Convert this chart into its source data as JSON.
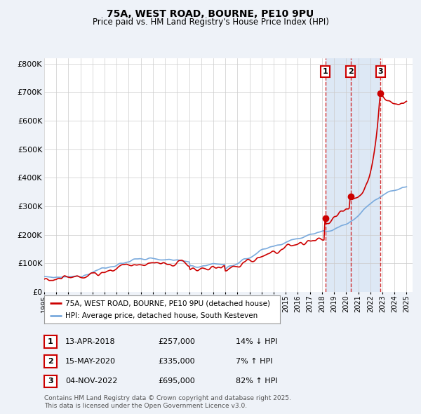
{
  "title1": "75A, WEST ROAD, BOURNE, PE10 9PU",
  "title2": "Price paid vs. HM Land Registry's House Price Index (HPI)",
  "ylabel_ticks": [
    "£0",
    "£100K",
    "£200K",
    "£300K",
    "£400K",
    "£500K",
    "£600K",
    "£700K",
    "£800K"
  ],
  "ytick_values": [
    0,
    100000,
    200000,
    300000,
    400000,
    500000,
    600000,
    700000,
    800000
  ],
  "ylim": [
    0,
    820000
  ],
  "xlim_start": 1995.0,
  "xlim_end": 2025.5,
  "background_color": "#eef2f8",
  "plot_bg_color": "#ffffff",
  "grid_color": "#cccccc",
  "red_color": "#cc0000",
  "blue_color": "#7aaadd",
  "shade_color": "#dde8f5",
  "sale_dates": [
    2018.28,
    2020.37,
    2022.84
  ],
  "sale_prices": [
    257000,
    335000,
    695000
  ],
  "sale_labels": [
    "1",
    "2",
    "3"
  ],
  "footer_text1": "Contains HM Land Registry data © Crown copyright and database right 2025.",
  "footer_text2": "This data is licensed under the Open Government Licence v3.0.",
  "legend_line1": "75A, WEST ROAD, BOURNE, PE10 9PU (detached house)",
  "legend_line2": "HPI: Average price, detached house, South Kesteven",
  "table_rows": [
    [
      "1",
      "13-APR-2018",
      "£257,000",
      "14% ↓ HPI"
    ],
    [
      "2",
      "15-MAY-2020",
      "£335,000",
      "7% ↑ HPI"
    ],
    [
      "3",
      "04-NOV-2022",
      "£695,000",
      "82% ↑ HPI"
    ]
  ]
}
